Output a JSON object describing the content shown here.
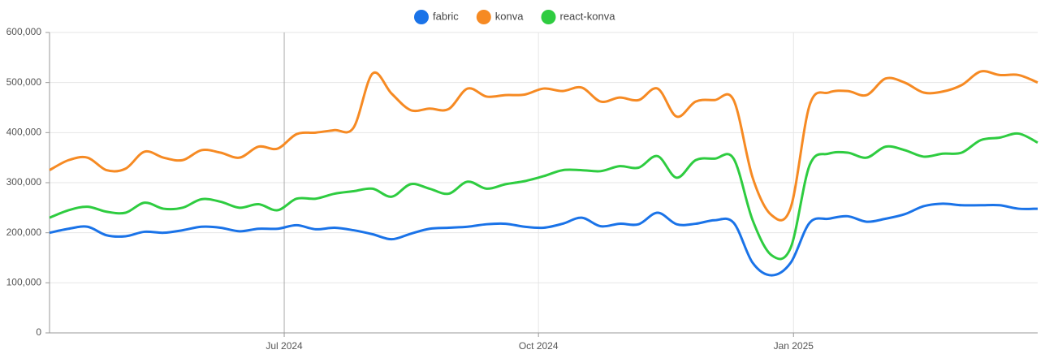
{
  "chart_data": {
    "type": "line",
    "x": [
      0,
      1,
      2,
      3,
      4,
      5,
      6,
      7,
      8,
      9,
      10,
      11,
      12,
      13,
      14,
      15,
      16,
      17,
      18,
      19,
      20,
      21,
      22,
      23,
      24,
      25,
      26,
      27,
      28,
      29,
      30,
      31,
      32,
      33,
      34,
      35,
      36,
      37,
      38,
      39,
      40,
      41,
      42,
      43,
      44,
      45,
      46,
      47,
      48,
      49,
      50,
      51,
      52
    ],
    "xlim": [
      0,
      52
    ],
    "xticks": [
      {
        "value": 12.35,
        "label": "Jul 2024"
      },
      {
        "value": 25.73,
        "label": "Oct 2024"
      },
      {
        "value": 39.15,
        "label": "Jan 2025"
      }
    ],
    "ylim": [
      0,
      600000
    ],
    "yticks": [
      0,
      {
        "value": 100000,
        "label": "100,000"
      },
      {
        "value": 200000,
        "label": "200,000"
      },
      {
        "value": 300000,
        "label": "300,000"
      },
      {
        "value": 400000,
        "label": "400,000"
      },
      {
        "value": 500000,
        "label": "500,000"
      },
      {
        "value": 600000,
        "label": "600,000"
      }
    ],
    "grid": true,
    "legend": "top",
    "series": [
      {
        "name": "fabric",
        "color": "#1a73e8",
        "values": [
          200000,
          208000,
          212000,
          195000,
          193000,
          202000,
          200000,
          205000,
          212000,
          210000,
          203000,
          208000,
          208000,
          215000,
          207000,
          210000,
          205000,
          197000,
          187000,
          198000,
          208000,
          210000,
          212000,
          217000,
          218000,
          212000,
          210000,
          218000,
          230000,
          213000,
          218000,
          217000,
          240000,
          217000,
          218000,
          225000,
          220000,
          140000,
          115000,
          140000,
          220000,
          228000,
          233000,
          222000,
          228000,
          237000,
          253000,
          258000,
          255000,
          255000,
          255000,
          248000,
          248000
        ]
      },
      {
        "name": "konva",
        "color": "#f68a23",
        "values": [
          325000,
          345000,
          350000,
          325000,
          328000,
          362000,
          350000,
          345000,
          365000,
          360000,
          350000,
          372000,
          368000,
          397000,
          400000,
          405000,
          410000,
          518000,
          478000,
          445000,
          448000,
          447000,
          488000,
          472000,
          475000,
          476000,
          488000,
          483000,
          490000,
          462000,
          470000,
          465000,
          488000,
          432000,
          462000,
          465000,
          465000,
          310000,
          235000,
          250000,
          455000,
          480000,
          483000,
          475000,
          508000,
          500000,
          480000,
          482000,
          495000,
          522000,
          515000,
          515000,
          500000
        ]
      },
      {
        "name": "react-konva",
        "color": "#2ecc40",
        "values": [
          230000,
          245000,
          252000,
          242000,
          240000,
          260000,
          248000,
          250000,
          267000,
          262000,
          250000,
          257000,
          245000,
          268000,
          268000,
          278000,
          283000,
          288000,
          272000,
          297000,
          288000,
          278000,
          302000,
          288000,
          297000,
          303000,
          313000,
          325000,
          325000,
          323000,
          333000,
          330000,
          353000,
          310000,
          345000,
          348000,
          348000,
          225000,
          155000,
          170000,
          335000,
          358000,
          360000,
          350000,
          372000,
          365000,
          352000,
          358000,
          360000,
          385000,
          390000,
          398000,
          380000
        ]
      }
    ]
  }
}
